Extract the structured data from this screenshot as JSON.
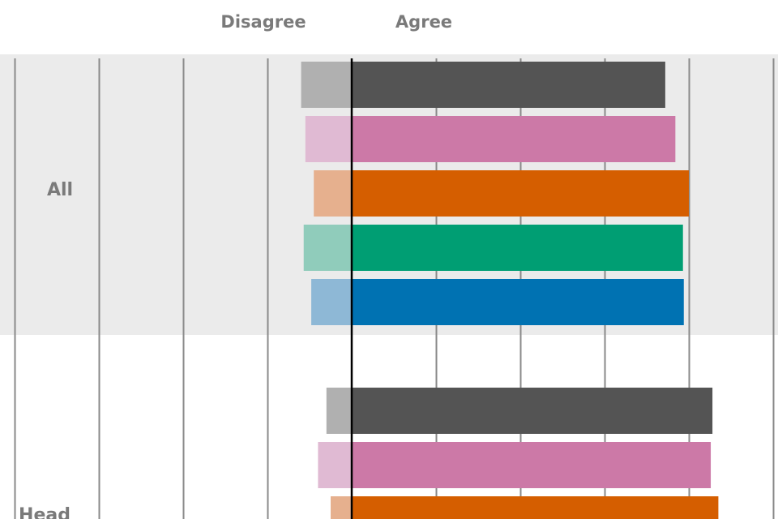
{
  "chart_data": {
    "type": "bar",
    "orientation": "horizontal",
    "stacked": "diverging",
    "title": "",
    "header_labels": {
      "negative": "Disagree",
      "positive": "Agree"
    },
    "xlim": [
      -40,
      50
    ],
    "grid": true,
    "categories": [
      "All",
      "Head"
    ],
    "series": [
      {
        "color_strong": "#545454",
        "color_light": "#b0b0b0",
        "agree": [
          37.2,
          42.8
        ],
        "disagree": [
          6.0,
          3.0
        ]
      },
      {
        "color_strong": "#cc79a7",
        "color_light": "#e0bad3",
        "agree": [
          38.4,
          42.6
        ],
        "disagree": [
          5.5,
          4.0
        ]
      },
      {
        "color_strong": "#d55e00",
        "color_light": "#e6b08e",
        "agree": [
          40.0,
          43.5
        ],
        "disagree": [
          4.5,
          2.5
        ]
      },
      {
        "color_strong": "#009e73",
        "color_light": "#90ccbb",
        "agree": [
          39.3,
          null
        ],
        "disagree": [
          5.7,
          null
        ]
      },
      {
        "color_strong": "#0072b2",
        "color_light": "#8eb8d6",
        "agree": [
          39.4,
          null
        ],
        "disagree": [
          4.8,
          null
        ]
      }
    ],
    "group_band_color": "#ebebeb"
  }
}
